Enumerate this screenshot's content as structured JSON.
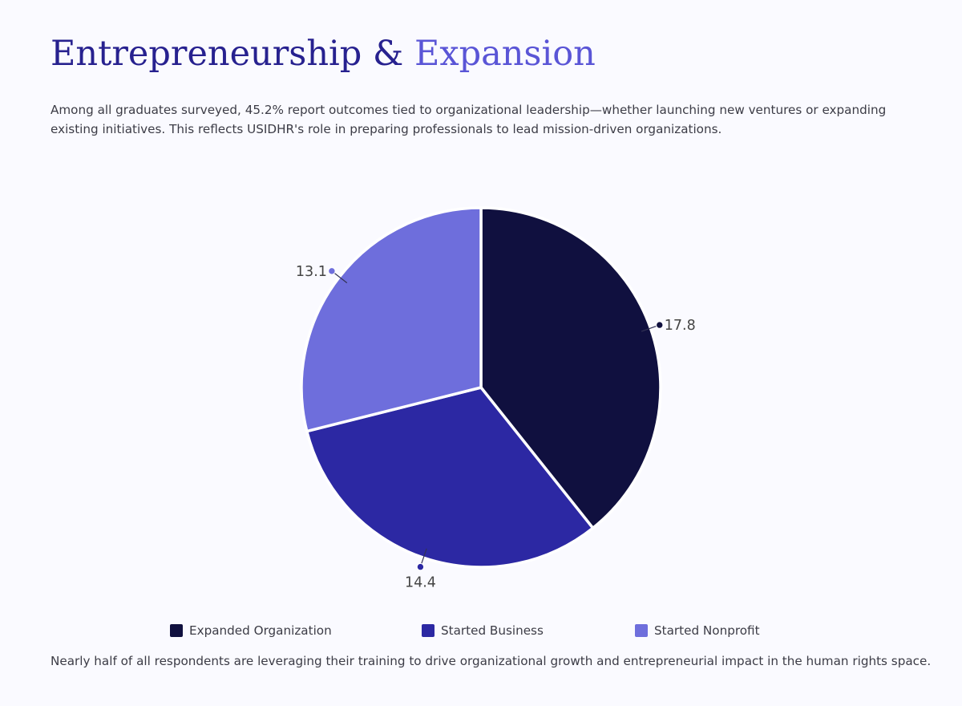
{
  "header": {
    "title_part1": "Entrepreneurship & ",
    "title_part2": "Expansion",
    "intro": "Among all graduates surveyed, 45.2% report outcomes tied to organizational leadership—whether launching new ventures or expanding existing initiatives. This reflects USIDHR's role in preparing professionals to lead mission-driven organizations."
  },
  "footer": {
    "text": "Nearly half of all respondents are leveraging their training to drive organizational growth and entrepreneurial impact in the human rights space."
  },
  "colors": {
    "title_dark": "#27218f",
    "title_light": "#5a55d6",
    "background": "#fafaff"
  },
  "chart_data": {
    "type": "pie",
    "title": "",
    "categories": [
      "Expanded Organization",
      "Started Business",
      "Started Nonprofit"
    ],
    "values": [
      17.8,
      14.4,
      13.1
    ],
    "data_labels": [
      "17.8",
      "14.4",
      "13.1"
    ],
    "colors": [
      "#10103f",
      "#2c28a3",
      "#6e6edc"
    ],
    "start_angle_deg": 0,
    "direction": "clockwise",
    "legend": {
      "position": "bottom",
      "entries": [
        "Expanded Organization",
        "Started Business",
        "Started Nonprofit"
      ]
    }
  }
}
